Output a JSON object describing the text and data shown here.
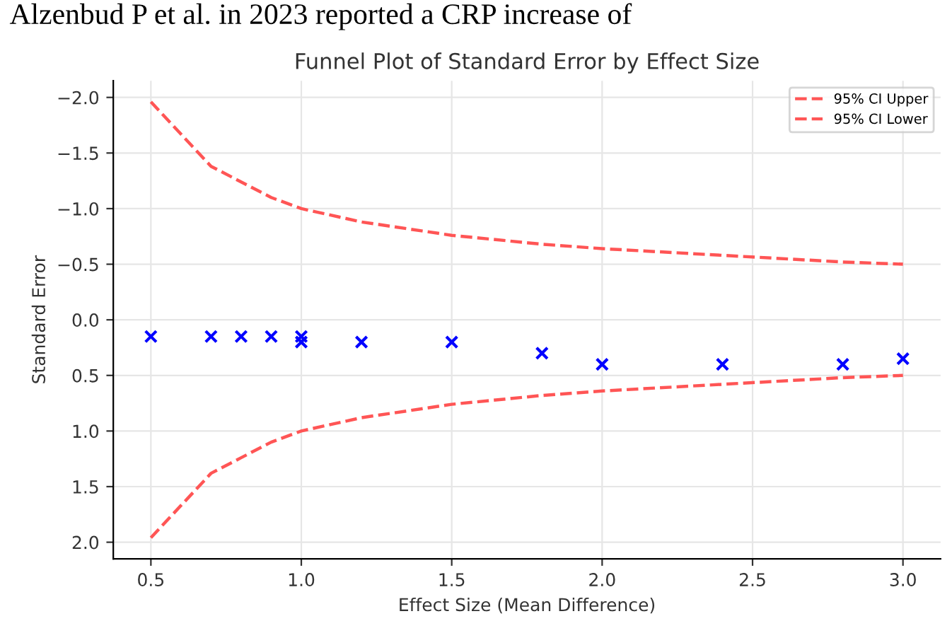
{
  "chart_data": {
    "type": "scatter",
    "title": "Funnel Plot of Standard Error by Effect Size",
    "xlabel": "Effect Size (Mean Difference)",
    "ylabel": "Standard Error",
    "annotations": [
      "Alzenbud P et al. in 2023 reported a CRP increase of"
    ],
    "series": [
      {
        "name": "95% CI Upper",
        "type": "line",
        "color": "#ff5555",
        "line_style": "dashed",
        "marker": "none",
        "x": [
          0.5,
          0.7,
          0.8,
          0.9,
          1.0,
          1.2,
          1.5,
          1.8,
          2.0,
          2.4,
          2.8,
          3.0
        ],
        "values": [
          -1.96,
          -1.38,
          -1.24,
          -1.1,
          -1.0,
          -0.88,
          -0.76,
          -0.68,
          -0.64,
          -0.58,
          -0.52,
          -0.5
        ]
      },
      {
        "name": "95% CI Lower",
        "type": "line",
        "color": "#ff5555",
        "line_style": "dashed",
        "marker": "none",
        "x": [
          0.5,
          0.7,
          0.8,
          0.9,
          1.0,
          1.2,
          1.5,
          1.8,
          2.0,
          2.4,
          2.8,
          3.0
        ],
        "values": [
          1.96,
          1.38,
          1.24,
          1.1,
          1.0,
          0.88,
          0.76,
          0.68,
          0.64,
          0.58,
          0.52,
          0.5
        ]
      },
      {
        "color": "#0000ff",
        "marker": "cross",
        "x": [
          0.5,
          0.7,
          0.8,
          0.9,
          1.0,
          1.0,
          1.2,
          1.5,
          1.8,
          2.0,
          2.4,
          2.8,
          3.0
        ],
        "values": [
          0.15,
          0.15,
          0.15,
          0.15,
          0.15,
          0.2,
          0.2,
          0.2,
          0.3,
          0.4,
          0.4,
          0.4,
          0.35
        ]
      }
    ],
    "xlim": [
      0.375,
      3.125
    ],
    "ylim": [
      2.15,
      -2.15
    ],
    "xticks": [
      0.5,
      {
        "value": 1,
        "label": "1.0"
      },
      1.5,
      {
        "value": 2,
        "label": "2.0"
      },
      2.5,
      {
        "value": 3,
        "label": "3.0"
      }
    ],
    "yticks": [
      {
        "value": -2.0,
        "label": "−2.0"
      },
      {
        "value": -1.5,
        "label": "−1.5"
      },
      {
        "value": -1.0,
        "label": "−1.0"
      },
      {
        "value": -0.5,
        "label": "−0.5"
      },
      {
        "value": 0,
        "label": "0.0"
      },
      0.5,
      {
        "value": 1,
        "label": "1.0"
      },
      1.5,
      {
        "value": 2,
        "label": "2.0"
      }
    ],
    "grid": true,
    "legend": "top right"
  }
}
